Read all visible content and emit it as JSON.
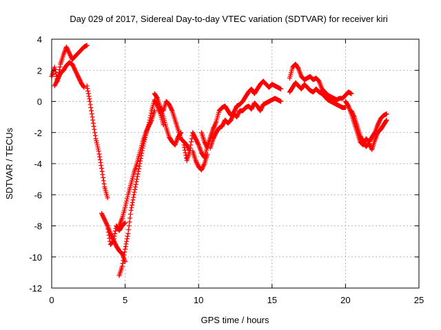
{
  "chart_data": {
    "type": "scatter",
    "title": "Day 029 of 2017, Sidereal Day-to-day VTEC variation (SDTVAR) for receiver kiri",
    "xlabel": "GPS time / hours",
    "ylabel": "SDTVAR / TECUs",
    "xlim": [
      0,
      25
    ],
    "ylim": [
      -12,
      4
    ],
    "x_ticks": [
      0,
      5,
      10,
      15,
      20,
      25
    ],
    "y_ticks": [
      -12,
      -10,
      -8,
      -6,
      -4,
      -2,
      0,
      2,
      4
    ],
    "grid": true,
    "marker": "+",
    "series_color": "#ff0000",
    "series": [
      {
        "tracks": [
          {
            "x": [
              0.0,
              0.2,
              0.4,
              0.6,
              0.8,
              1.0,
              1.2,
              1.4,
              1.6,
              1.8,
              2.0,
              2.2,
              2.4
            ],
            "y": [
              1.6,
              2.2,
              1.3,
              2.4,
              3.0,
              3.5,
              3.1,
              2.7,
              2.9,
              3.1,
              3.3,
              3.5,
              3.6
            ]
          },
          {
            "x": [
              0.2,
              0.4,
              0.6,
              0.8,
              1.0,
              1.2,
              1.4,
              1.6,
              1.8,
              2.0,
              2.2
            ],
            "y": [
              1.0,
              1.4,
              1.8,
              2.0,
              2.3,
              2.5,
              2.4,
              2.0,
              1.6,
              1.2,
              0.9
            ]
          },
          {
            "x": [
              2.4,
              2.6,
              2.8,
              3.0,
              3.2,
              3.4,
              3.6,
              3.8
            ],
            "y": [
              1.0,
              0.0,
              -1.2,
              -2.4,
              -3.2,
              -4.3,
              -5.5,
              -6.2
            ]
          },
          {
            "x": [
              3.4,
              3.6,
              3.8,
              4.0,
              4.2,
              4.4,
              4.6,
              4.8,
              5.0
            ],
            "y": [
              -7.2,
              -7.6,
              -8.0,
              -8.5,
              -8.9,
              -9.3,
              -9.6,
              -9.8,
              -10.3
            ]
          },
          {
            "x": [
              3.8,
              4.0,
              4.2,
              4.4,
              4.6,
              4.8,
              5.0
            ],
            "y": [
              -8.0,
              -9.2,
              -9.0,
              -8.0,
              -8.3,
              -8.0,
              -7.8
            ]
          },
          {
            "x": [
              4.6,
              4.8,
              5.0,
              5.2,
              5.4,
              5.6,
              5.8,
              6.0,
              6.2,
              6.4,
              6.6,
              6.8,
              7.0,
              7.2,
              7.4,
              7.6
            ],
            "y": [
              -11.2,
              -10.6,
              -9.5,
              -8.5,
              -7.0,
              -6.0,
              -5.0,
              -4.0,
              -3.0,
              -2.2,
              -1.5,
              -0.6,
              0.1,
              -0.3,
              -0.8,
              -1.5
            ]
          },
          {
            "x": [
              4.6,
              4.8,
              5.0,
              5.2,
              5.4,
              5.6,
              5.8,
              6.0,
              6.2,
              6.4,
              6.6,
              6.8,
              7.0
            ],
            "y": [
              -8.0,
              -7.5,
              -6.8,
              -6.0,
              -5.3,
              -4.6,
              -4.0,
              -3.3,
              -2.6,
              -2.0,
              -1.6,
              -1.2,
              -0.6
            ]
          },
          {
            "x": [
              7.0,
              7.2,
              7.4,
              7.6,
              7.8,
              8.0,
              8.2,
              8.4,
              8.6,
              8.8
            ],
            "y": [
              0.5,
              0.2,
              -0.4,
              -1.0,
              -1.7,
              -2.3,
              -2.6,
              -2.8,
              -2.3,
              -2.0
            ]
          },
          {
            "x": [
              7.4,
              7.6,
              7.8,
              8.0,
              8.2,
              8.4,
              8.6,
              8.8,
              9.0,
              9.2,
              9.4
            ],
            "y": [
              -0.4,
              -0.6,
              0.0,
              -0.2,
              -0.6,
              -1.2,
              -1.8,
              -2.4,
              -2.6,
              -2.8,
              -3.2
            ]
          },
          {
            "x": [
              9.0,
              9.2,
              9.4,
              9.6,
              9.8,
              10.0,
              10.2,
              10.4,
              10.6,
              10.8,
              11.0
            ],
            "y": [
              -2.8,
              -3.8,
              -3.2,
              -2.0,
              -2.4,
              -2.8,
              -3.3,
              -3.6,
              -2.9,
              -2.3,
              -1.7
            ]
          },
          {
            "x": [
              9.6,
              9.8,
              10.0,
              10.2,
              10.4,
              10.6
            ],
            "y": [
              -3.2,
              -3.8,
              -4.2,
              -4.4,
              -4.0,
              -3.4
            ]
          },
          {
            "x": [
              10.2,
              10.4,
              10.6,
              10.8,
              11.0,
              11.2,
              11.4,
              11.6,
              11.8,
              12.0,
              12.2,
              12.4,
              12.6,
              12.8,
              13.0,
              13.2,
              13.4,
              13.6,
              13.8,
              14.0,
              14.2,
              14.4,
              14.6,
              14.8,
              15.0,
              15.2,
              15.4,
              15.6
            ],
            "y": [
              -2.0,
              -2.6,
              -3.0,
              -2.4,
              -1.8,
              -1.3,
              -0.6,
              -0.4,
              -0.3,
              -0.6,
              -0.9,
              -0.7,
              -0.3,
              -0.2,
              0.0,
              0.3,
              0.6,
              0.8,
              0.5,
              0.8,
              1.1,
              1.3,
              1.1,
              0.9,
              1.1,
              1.0,
              0.9,
              0.8
            ]
          },
          {
            "x": [
              10.8,
              11.0,
              11.2,
              11.4,
              11.6,
              11.8,
              12.0,
              12.2,
              12.4,
              12.6,
              12.8,
              13.0,
              13.2,
              13.4,
              13.6,
              13.8,
              14.0,
              14.2,
              14.4,
              14.6,
              14.8,
              15.0,
              15.2,
              15.4,
              15.6
            ],
            "y": [
              -3.0,
              -2.4,
              -2.0,
              -1.7,
              -1.6,
              -1.2,
              -1.4,
              -1.2,
              -0.8,
              -1.0,
              -0.6,
              -0.6,
              -0.4,
              -0.3,
              -0.5,
              -0.1,
              -0.3,
              -0.6,
              -0.2,
              -0.1,
              0.0,
              0.1,
              0.2,
              0.1,
              0.0
            ]
          },
          {
            "x": [
              16.2,
              16.4,
              16.6,
              16.8,
              17.0,
              17.2,
              17.4,
              17.6,
              17.8,
              18.0,
              18.2,
              18.4,
              18.6,
              18.8,
              19.0,
              19.2,
              19.4,
              19.6,
              19.8,
              20.0,
              20.2,
              20.4
            ],
            "y": [
              1.5,
              2.2,
              2.4,
              2.1,
              1.6,
              1.4,
              1.5,
              1.6,
              1.4,
              1.5,
              1.3,
              0.8,
              0.6,
              0.4,
              0.3,
              0.2,
              0.1,
              0.2,
              0.2,
              0.4,
              0.6,
              0.5
            ]
          },
          {
            "x": [
              16.2,
              16.4,
              16.6,
              16.8,
              17.0,
              17.2,
              17.4,
              17.6,
              17.8,
              18.0,
              18.2,
              18.4,
              18.6,
              18.8,
              19.0,
              19.2,
              19.4,
              19.6,
              19.8,
              20.0
            ],
            "y": [
              0.6,
              0.9,
              1.2,
              1.0,
              0.8,
              1.1,
              0.9,
              0.7,
              0.6,
              0.8,
              0.6,
              0.5,
              0.3,
              0.1,
              0.0,
              -0.1,
              -0.2,
              -0.3,
              -0.4,
              -0.4
            ]
          },
          {
            "x": [
              20.0,
              20.2,
              20.4,
              20.6,
              20.8,
              21.0,
              21.2,
              21.4,
              21.6,
              21.8,
              22.0,
              22.2,
              22.4,
              22.6,
              22.8
            ],
            "y": [
              0.0,
              -0.3,
              -0.8,
              -1.4,
              -2.0,
              -2.6,
              -2.8,
              -2.4,
              -2.6,
              -2.3,
              -2.0,
              -1.5,
              -1.1,
              -0.9,
              -0.8
            ]
          },
          {
            "x": [
              20.4,
              20.6,
              20.8,
              21.0,
              21.2,
              21.4,
              21.6,
              21.8,
              22.0,
              22.2,
              22.4,
              22.6,
              22.8
            ],
            "y": [
              -0.6,
              -1.0,
              -1.6,
              -2.2,
              -2.6,
              -2.9,
              -2.7,
              -3.1,
              -2.5,
              -2.0,
              -1.8,
              -1.5,
              -1.2
            ]
          }
        ]
      }
    ]
  }
}
